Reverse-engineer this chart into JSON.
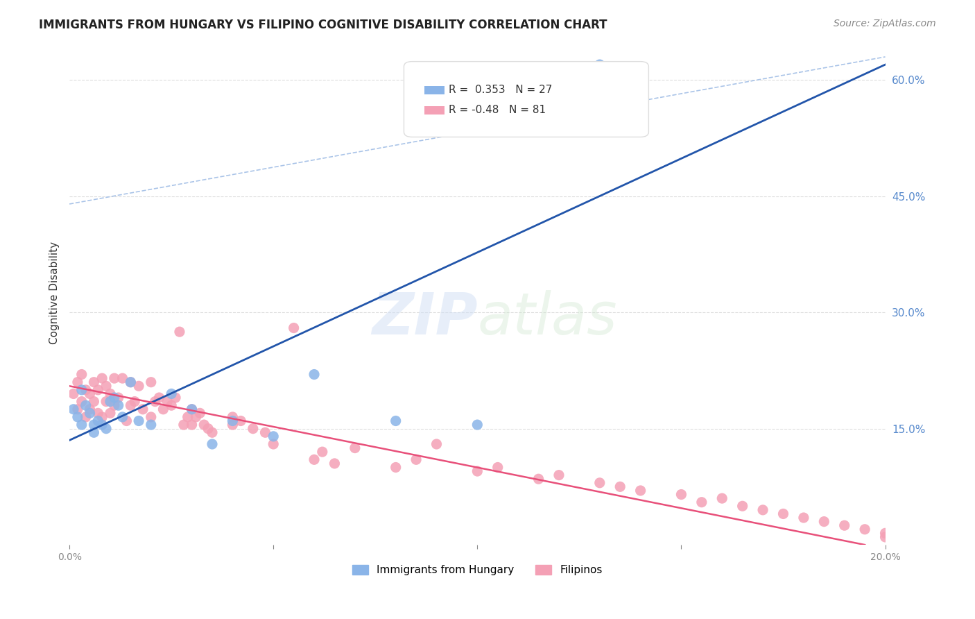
{
  "title": "IMMIGRANTS FROM HUNGARY VS FILIPINO COGNITIVE DISABILITY CORRELATION CHART",
  "source": "Source: ZipAtlas.com",
  "ylabel": "Cognitive Disability",
  "xlabel_bottom_left": "0.0%",
  "xlabel_bottom_right": "20.0%",
  "watermark": "ZIPatlas",
  "xlim": [
    0.0,
    0.2
  ],
  "ylim": [
    0.0,
    0.65
  ],
  "yticks": [
    0.15,
    0.3,
    0.45,
    0.6
  ],
  "ytick_labels": [
    "15.0%",
    "30.0%",
    "45.0%",
    "60.0%"
  ],
  "xticks": [
    0.0,
    0.05,
    0.1,
    0.15,
    0.2
  ],
  "xtick_labels": [
    "0.0%",
    "",
    "",
    "",
    "20.0%"
  ],
  "hungary_R": 0.353,
  "hungary_N": 27,
  "filipino_R": -0.48,
  "filipino_N": 81,
  "hungary_color": "#8ab4e8",
  "filipino_color": "#f4a0b5",
  "hungary_line_color": "#2255aa",
  "filipino_line_color": "#e8507a",
  "dashed_line_color": "#aac4e8",
  "background_color": "#ffffff",
  "grid_color": "#dddddd",
  "hungary_scatter_x": [
    0.001,
    0.002,
    0.003,
    0.003,
    0.004,
    0.005,
    0.006,
    0.006,
    0.007,
    0.008,
    0.009,
    0.01,
    0.011,
    0.012,
    0.013,
    0.015,
    0.017,
    0.02,
    0.025,
    0.03,
    0.035,
    0.04,
    0.05,
    0.06,
    0.08,
    0.1,
    0.13
  ],
  "hungary_scatter_y": [
    0.175,
    0.165,
    0.155,
    0.2,
    0.18,
    0.17,
    0.155,
    0.145,
    0.16,
    0.155,
    0.15,
    0.185,
    0.19,
    0.18,
    0.165,
    0.21,
    0.16,
    0.155,
    0.195,
    0.175,
    0.13,
    0.16,
    0.14,
    0.22,
    0.16,
    0.155,
    0.62
  ],
  "filipino_scatter_x": [
    0.001,
    0.002,
    0.002,
    0.003,
    0.003,
    0.004,
    0.004,
    0.005,
    0.005,
    0.006,
    0.006,
    0.007,
    0.007,
    0.008,
    0.008,
    0.009,
    0.009,
    0.01,
    0.01,
    0.011,
    0.011,
    0.012,
    0.013,
    0.014,
    0.015,
    0.015,
    0.016,
    0.017,
    0.018,
    0.02,
    0.02,
    0.021,
    0.022,
    0.023,
    0.024,
    0.025,
    0.026,
    0.027,
    0.028,
    0.029,
    0.03,
    0.03,
    0.031,
    0.032,
    0.033,
    0.034,
    0.035,
    0.04,
    0.04,
    0.042,
    0.045,
    0.048,
    0.05,
    0.055,
    0.06,
    0.062,
    0.065,
    0.07,
    0.08,
    0.085,
    0.09,
    0.1,
    0.105,
    0.115,
    0.12,
    0.13,
    0.135,
    0.14,
    0.15,
    0.155,
    0.16,
    0.165,
    0.17,
    0.175,
    0.18,
    0.185,
    0.19,
    0.195,
    0.2,
    0.2,
    0.205
  ],
  "filipino_scatter_y": [
    0.195,
    0.21,
    0.175,
    0.185,
    0.22,
    0.2,
    0.165,
    0.195,
    0.175,
    0.21,
    0.185,
    0.2,
    0.17,
    0.215,
    0.165,
    0.205,
    0.185,
    0.195,
    0.17,
    0.215,
    0.18,
    0.19,
    0.215,
    0.16,
    0.21,
    0.18,
    0.185,
    0.205,
    0.175,
    0.21,
    0.165,
    0.185,
    0.19,
    0.175,
    0.185,
    0.18,
    0.19,
    0.275,
    0.155,
    0.165,
    0.175,
    0.155,
    0.165,
    0.17,
    0.155,
    0.15,
    0.145,
    0.165,
    0.155,
    0.16,
    0.15,
    0.145,
    0.13,
    0.28,
    0.11,
    0.12,
    0.105,
    0.125,
    0.1,
    0.11,
    0.13,
    0.095,
    0.1,
    0.085,
    0.09,
    0.08,
    0.075,
    0.07,
    0.065,
    0.055,
    0.06,
    0.05,
    0.045,
    0.04,
    0.035,
    0.03,
    0.025,
    0.02,
    0.015,
    0.01,
    0.005
  ]
}
